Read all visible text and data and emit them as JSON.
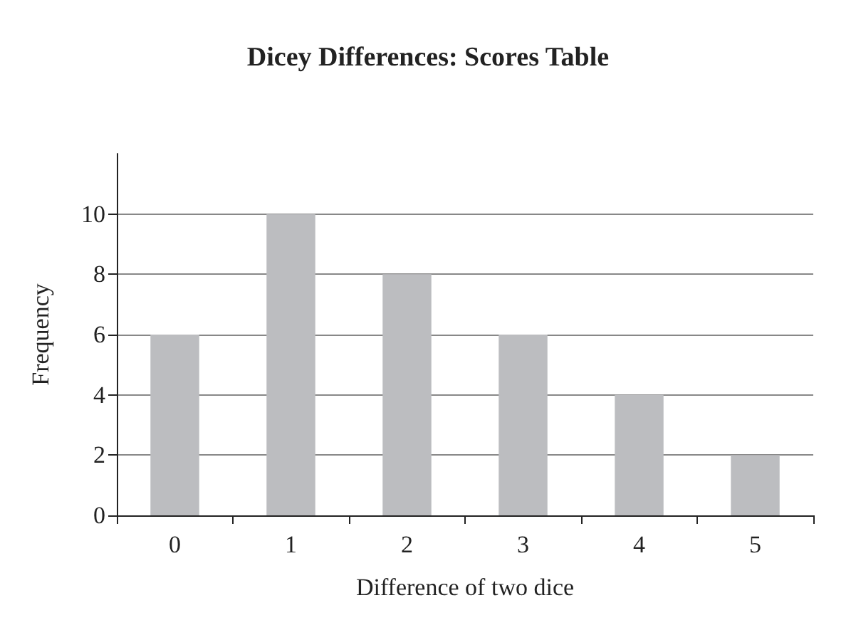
{
  "chart_data": {
    "type": "bar",
    "title": "Dicey Differences: Scores Table",
    "xlabel": "Difference of two dice",
    "ylabel": "Frequency",
    "categories": [
      "0",
      "1",
      "2",
      "3",
      "4",
      "5"
    ],
    "values": [
      6,
      10,
      8,
      6,
      4,
      2
    ],
    "color": "#bcbdc0",
    "ylim": [
      0,
      12
    ],
    "yticks": [
      0,
      2,
      4,
      6,
      8,
      10
    ],
    "grid": "y"
  }
}
